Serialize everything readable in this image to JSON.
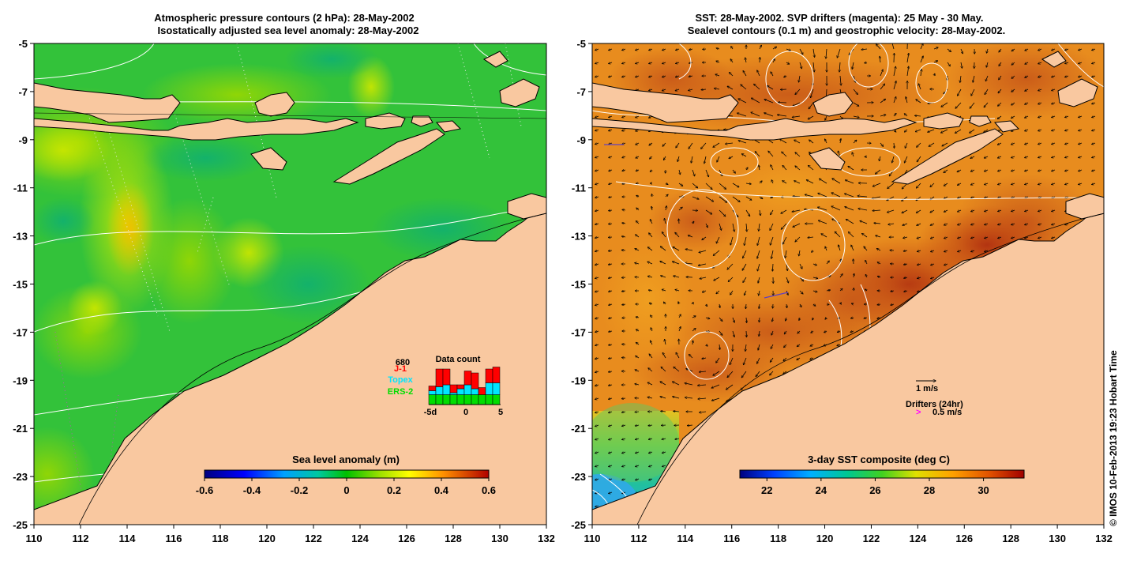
{
  "left_panel": {
    "title_line1": "Atmospheric pressure contours (2 hPa): 28-May-2002",
    "title_line2": "Isostatically adjusted sea level anomaly: 28-May-2002",
    "colorbar": {
      "label": "Sea level anomaly (m)",
      "min": -0.6,
      "max": 0.6,
      "ticks": [
        "-0.6",
        "-0.4",
        "-0.2",
        "0",
        "0.2",
        "0.4",
        "0.6"
      ]
    },
    "data_count": {
      "title": "Data count",
      "max_label": "680",
      "legend": [
        {
          "name": "J-1",
          "color": "#ff0000"
        },
        {
          "name": "Topex",
          "color": "#00e5ff"
        },
        {
          "name": "ERS-2",
          "color": "#00dd00"
        }
      ],
      "x_ticks": [
        "-5d",
        "0",
        "5"
      ],
      "bars": [
        {
          "day": -5,
          "ers2": 0.25,
          "topex": 0.1,
          "j1": 0.12
        },
        {
          "day": -4,
          "ers2": 0.25,
          "topex": 0.2,
          "j1": 0.45
        },
        {
          "day": -3,
          "ers2": 0.25,
          "topex": 0.25,
          "j1": 0.4
        },
        {
          "day": -2,
          "ers2": 0.25,
          "topex": 0.05,
          "j1": 0.2
        },
        {
          "day": -1,
          "ers2": 0.25,
          "topex": 0.15,
          "j1": 0.1
        },
        {
          "day": 0,
          "ers2": 0.25,
          "topex": 0.25,
          "j1": 0.35
        },
        {
          "day": 1,
          "ers2": 0.25,
          "topex": 0.15,
          "j1": 0.4
        },
        {
          "day": 2,
          "ers2": 0.25,
          "topex": 0.0,
          "j1": 0.18
        },
        {
          "day": 3,
          "ers2": 0.25,
          "topex": 0.3,
          "j1": 0.35
        },
        {
          "day": 4,
          "ers2": 0.25,
          "topex": 0.3,
          "j1": 0.4
        }
      ]
    }
  },
  "right_panel": {
    "title_line1": "SST: 28-May-2002. SVP drifters (magenta): 25 May - 30 May.",
    "title_line2": "Sealevel contours (0.1 m) and geostrophic velocity: 28-May-2002.",
    "colorbar": {
      "label": "3-day SST composite (deg C)",
      "min": 21,
      "max": 31.5,
      "ticks": [
        "22",
        "24",
        "26",
        "28",
        "30"
      ]
    },
    "velocity_scale": "1 m/s",
    "drifter_label": "Drifters (24hr)",
    "drifter_scale": "0.5 m/s",
    "drifter_marker": ">"
  },
  "axes": {
    "x_ticks": [
      "110",
      "112",
      "114",
      "116",
      "118",
      "120",
      "122",
      "124",
      "126",
      "128",
      "130",
      "132"
    ],
    "y_ticks": [
      "-5",
      "-7",
      "-9",
      "-11",
      "-13",
      "-15",
      "-17",
      "-19",
      "-21",
      "-23",
      "-25"
    ],
    "lon_range": [
      110,
      132
    ],
    "lat_range": [
      -25,
      -5
    ]
  },
  "credit": "© IMOS 10-Feb-2013 19:23 Hobart Time",
  "colors": {
    "land": "#f9c8a0",
    "coast": "#000000",
    "contour": "#ffffff"
  }
}
